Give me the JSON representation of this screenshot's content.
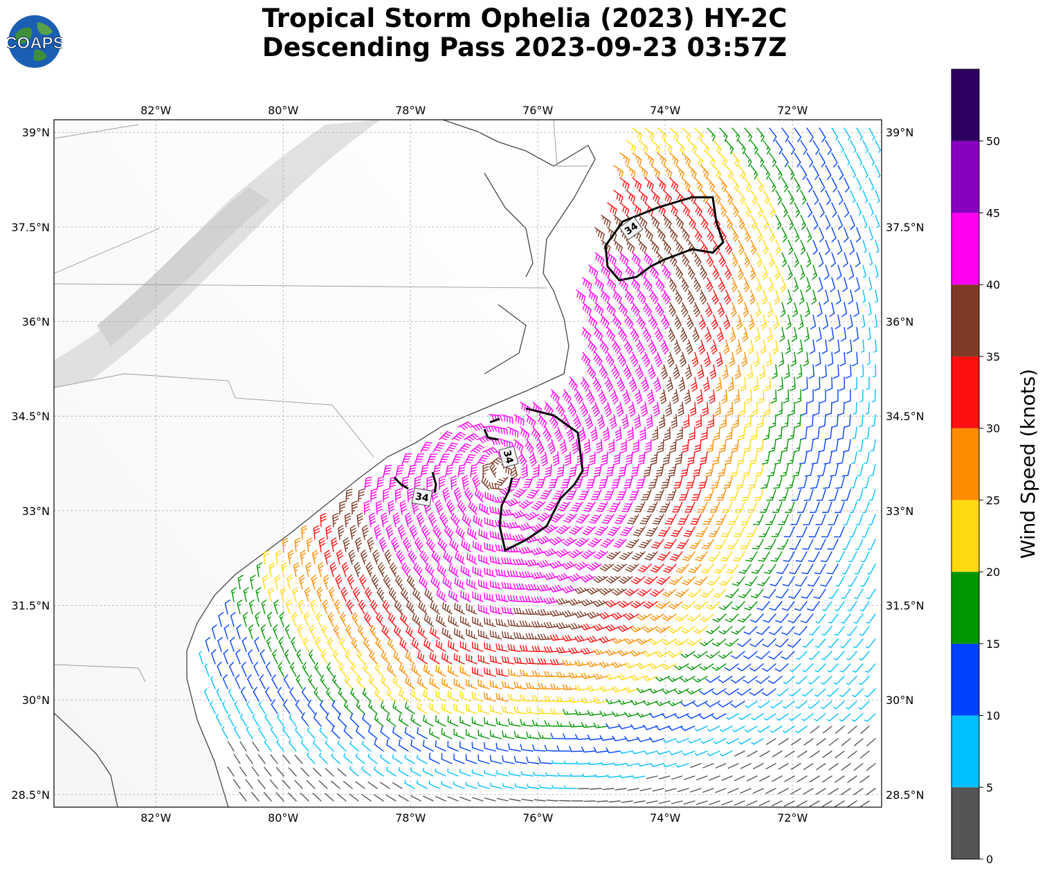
{
  "title": {
    "line1": "Tropical Storm Ophelia (2023) HY-2C",
    "line2": "Descending Pass 2023-09-23 03:57Z"
  },
  "logo": {
    "text": "COAPS",
    "icon": "globe-logo-icon"
  },
  "map": {
    "lon_labels": [
      "82°W",
      "80°W",
      "78°W",
      "76°W",
      "74°W",
      "72°W"
    ],
    "lat_labels": [
      "39°N",
      "37.5°N",
      "36°N",
      "34.5°N",
      "33°N",
      "31.5°N",
      "30°N",
      "28.5°N"
    ],
    "extent": {
      "lon": [
        -83.6,
        -70.6
      ],
      "lat": [
        28.3,
        39.2
      ]
    },
    "contour_label": "34",
    "contour_labels": [
      "34",
      "34",
      "34"
    ],
    "gridlines": true,
    "storm_center": {
      "lon": -76.6,
      "lat": 33.6
    }
  },
  "colorbar": {
    "label": "Wind Speed (knots)",
    "ticks": [
      "0",
      "5",
      "10",
      "15",
      "20",
      "25",
      "30",
      "35",
      "40",
      "45",
      "50"
    ],
    "bins": [
      {
        "min": 0,
        "max": 5,
        "color": "#555555"
      },
      {
        "min": 5,
        "max": 10,
        "color": "#00bfff"
      },
      {
        "min": 10,
        "max": 15,
        "color": "#0040ff"
      },
      {
        "min": 15,
        "max": 20,
        "color": "#009600"
      },
      {
        "min": 20,
        "max": 25,
        "color": "#ffd90f"
      },
      {
        "min": 25,
        "max": 30,
        "color": "#ff8c00"
      },
      {
        "min": 30,
        "max": 35,
        "color": "#ff1010"
      },
      {
        "min": 35,
        "max": 40,
        "color": "#7f3a26"
      },
      {
        "min": 40,
        "max": 45,
        "color": "#ff00f0"
      },
      {
        "min": 45,
        "max": 50,
        "color": "#8800c0"
      },
      {
        "min": 50,
        "max": 55,
        "color": "#2e0060"
      }
    ]
  }
}
